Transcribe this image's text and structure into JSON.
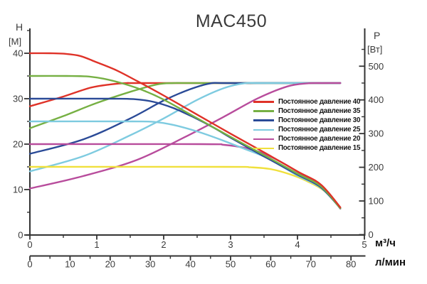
{
  "chart_data": {
    "type": "line",
    "title": "MAC450",
    "x_axis": {
      "unit": "м³/ч",
      "min": 0,
      "max": 5,
      "major_ticks": [
        0,
        1,
        2,
        3,
        4,
        5
      ],
      "minor_step": 0.5
    },
    "x_axis_secondary": {
      "unit": "л/мин",
      "min": 0,
      "max": 83.3,
      "major_ticks": [
        0,
        10,
        20,
        30,
        40,
        50,
        60,
        70,
        80
      ],
      "minor_step": 5
    },
    "y_axis_left": {
      "quantity": "H",
      "unit": "[M]",
      "min": 0,
      "max": 45,
      "major_ticks": [
        0,
        10,
        20,
        30,
        40
      ],
      "minor_step": 5
    },
    "y_axis_right": {
      "quantity": "P",
      "unit": "[Вт]",
      "min": 0,
      "max": 560,
      "major_ticks": [
        0,
        100,
        200,
        300,
        400,
        500
      ],
      "minor_step": 50
    },
    "power_plateau_w": 450,
    "legend_position": "right-middle",
    "grid": false,
    "series": [
      {
        "label": "Постоянное давление 40",
        "color": "#df3228",
        "head": [
          [
            0,
            40
          ],
          [
            0.3,
            40
          ],
          [
            0.5,
            39.9
          ],
          [
            0.75,
            39.4
          ],
          [
            1.0,
            38.0
          ],
          [
            1.3,
            36.2
          ],
          [
            1.6,
            33.9
          ],
          [
            2.0,
            30.7
          ],
          [
            2.5,
            26.5
          ],
          [
            3.0,
            22.3
          ],
          [
            3.5,
            18.2
          ],
          [
            4.0,
            14.0
          ],
          [
            4.35,
            11.1
          ],
          [
            4.64,
            6.1
          ]
        ],
        "power": [
          [
            0,
            381
          ],
          [
            0.5,
            410
          ],
          [
            0.9,
            436
          ],
          [
            1.2,
            446
          ],
          [
            1.45,
            450
          ],
          [
            1.8,
            450
          ],
          [
            4.64,
            450
          ]
        ]
      },
      {
        "label": "Постоянное давление 35",
        "color": "#76b043",
        "head": [
          [
            0,
            35
          ],
          [
            0.55,
            35
          ],
          [
            0.85,
            34.9
          ],
          [
            1.1,
            34.4
          ],
          [
            1.4,
            33.3
          ],
          [
            1.7,
            31.8
          ],
          [
            2.0,
            29.8
          ],
          [
            2.5,
            25.7
          ],
          [
            3.0,
            21.6
          ],
          [
            3.5,
            17.6
          ],
          [
            4.0,
            13.5
          ],
          [
            4.35,
            10.7
          ],
          [
            4.64,
            5.9
          ]
        ],
        "power": [
          [
            0,
            316
          ],
          [
            0.5,
            352
          ],
          [
            1.0,
            391
          ],
          [
            1.5,
            424
          ],
          [
            1.9,
            446
          ],
          [
            2.15,
            450
          ],
          [
            2.5,
            450
          ],
          [
            4.64,
            450
          ]
        ]
      },
      {
        "label": "Постоянное давление 30",
        "color": "#2a4a97",
        "head": [
          [
            0,
            30
          ],
          [
            1.2,
            30
          ],
          [
            1.55,
            29.9
          ],
          [
            1.85,
            29.3
          ],
          [
            2.15,
            27.9
          ],
          [
            2.45,
            25.9
          ],
          [
            2.75,
            23.6
          ],
          [
            3.05,
            21.0
          ],
          [
            3.5,
            17.3
          ],
          [
            4.0,
            13.3
          ],
          [
            4.35,
            10.5
          ],
          [
            4.64,
            5.9
          ]
        ],
        "power": [
          [
            0,
            240
          ],
          [
            0.8,
            283
          ],
          [
            1.5,
            345
          ],
          [
            2.0,
            398
          ],
          [
            2.4,
            432
          ],
          [
            2.7,
            449
          ],
          [
            3.0,
            450
          ],
          [
            4.64,
            450
          ]
        ]
      },
      {
        "label": "Постоянное давление 25",
        "color": "#7ecbe0",
        "head": [
          [
            0,
            25
          ],
          [
            1.5,
            25
          ],
          [
            1.85,
            24.9
          ],
          [
            2.15,
            24.2
          ],
          [
            2.5,
            22.8
          ],
          [
            2.85,
            21.0
          ],
          [
            3.2,
            19.0
          ],
          [
            3.55,
            16.9
          ],
          [
            4.0,
            13.1
          ],
          [
            4.35,
            10.4
          ],
          [
            4.64,
            5.9
          ]
        ],
        "power": [
          [
            0,
            188
          ],
          [
            0.8,
            233
          ],
          [
            1.5,
            295
          ],
          [
            2.0,
            345
          ],
          [
            2.5,
            400
          ],
          [
            2.9,
            435
          ],
          [
            3.2,
            449
          ],
          [
            3.5,
            450
          ],
          [
            4.64,
            450
          ]
        ]
      },
      {
        "label": "Постоянное давление 20",
        "color": "#b84c9c",
        "head": [
          [
            0,
            20
          ],
          [
            2.55,
            20
          ],
          [
            2.9,
            19.85
          ],
          [
            3.2,
            19.2
          ],
          [
            3.5,
            17.9
          ],
          [
            3.8,
            15.7
          ],
          [
            4.1,
            13.0
          ],
          [
            4.4,
            10.2
          ],
          [
            4.64,
            5.8
          ]
        ],
        "power": [
          [
            0,
            137
          ],
          [
            0.8,
            174
          ],
          [
            1.6,
            222
          ],
          [
            2.3,
            288
          ],
          [
            2.9,
            350
          ],
          [
            3.4,
            404
          ],
          [
            3.85,
            440
          ],
          [
            4.15,
            449
          ],
          [
            4.4,
            450
          ],
          [
            4.64,
            450
          ]
        ]
      },
      {
        "label": "Постоянное давление 15",
        "color": "#f0e03c",
        "head": [
          [
            0,
            15
          ],
          [
            2.9,
            15
          ],
          [
            3.3,
            14.9
          ],
          [
            3.6,
            14.5
          ],
          [
            3.9,
            13.3
          ],
          [
            4.15,
            11.8
          ],
          [
            4.4,
            9.7
          ],
          [
            4.64,
            5.9
          ]
        ]
      }
    ]
  }
}
